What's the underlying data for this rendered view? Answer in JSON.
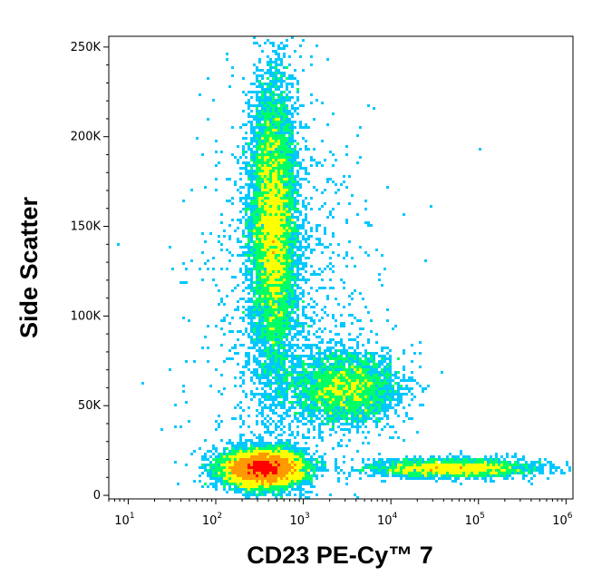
{
  "chart_data": {
    "type": "scatter",
    "title": "",
    "xlabel": "CD23 PE-Cy™ 7",
    "ylabel": "Side Scatter",
    "xscale": "log",
    "xlim": [
      6,
      1200000
    ],
    "ylim": [
      -2000,
      256000
    ],
    "x_ticks": [
      {
        "value": 10,
        "base": "10",
        "exp": "1"
      },
      {
        "value": 100,
        "base": "10",
        "exp": "2"
      },
      {
        "value": 1000,
        "base": "10",
        "exp": "3"
      },
      {
        "value": 10000,
        "base": "10",
        "exp": "4"
      },
      {
        "value": 100000,
        "base": "10",
        "exp": "5"
      },
      {
        "value": 1000000,
        "base": "10",
        "exp": "6"
      }
    ],
    "y_ticks": [
      {
        "value": 0,
        "label": "0"
      },
      {
        "value": 50000,
        "label": "50K"
      },
      {
        "value": 100000,
        "label": "100K"
      },
      {
        "value": 150000,
        "label": "150K"
      },
      {
        "value": 200000,
        "label": "200K"
      },
      {
        "value": 250000,
        "label": "250K"
      }
    ],
    "colormap": [
      "#0000ff",
      "#00c8ff",
      "#00ff66",
      "#ffff00",
      "#ff9900",
      "#ff0000"
    ],
    "grid": false,
    "populations": [
      {
        "x_center": 350,
        "y_center": 15000,
        "x_spread_decades": 0.22,
        "y_spread": 5000,
        "weight": 0.4
      },
      {
        "x_center": 450,
        "y_center": 150000,
        "x_spread_decades": 0.13,
        "y_spread": 40000,
        "weight": 0.32
      },
      {
        "x_center": 3000,
        "y_center": 60000,
        "x_spread_decades": 0.3,
        "y_spread": 10000,
        "weight": 0.13
      },
      {
        "x_center": 50000,
        "y_center": 15000,
        "x_spread_decades": 0.45,
        "y_spread": 2500,
        "weight": 0.1
      },
      {
        "x_center": 700,
        "y_center": 100000,
        "x_spread_decades": 0.5,
        "y_spread": 60000,
        "weight": 0.05
      }
    ]
  }
}
